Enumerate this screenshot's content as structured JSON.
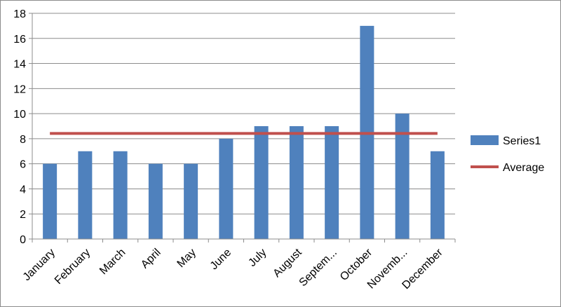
{
  "chart_data": {
    "type": "bar",
    "title": "",
    "xlabel": "",
    "ylabel": "",
    "categories": [
      "January",
      "February",
      "March",
      "April",
      "May",
      "June",
      "July",
      "August",
      "Septem...",
      "October",
      "Novemb...",
      "December"
    ],
    "series": [
      {
        "name": "Series1",
        "type": "bar",
        "color": "#4f81bd",
        "values": [
          6,
          7,
          7,
          6,
          6,
          8,
          9,
          9,
          9,
          17,
          10,
          7
        ]
      },
      {
        "name": "Average",
        "type": "line",
        "color": "#c0504d",
        "value": 8.42
      }
    ],
    "ylim": [
      0,
      18
    ],
    "yticks": [
      "0",
      "2",
      "4",
      "6",
      "8",
      "10",
      "12",
      "14",
      "16",
      "18"
    ],
    "grid": true,
    "legend": "right"
  }
}
